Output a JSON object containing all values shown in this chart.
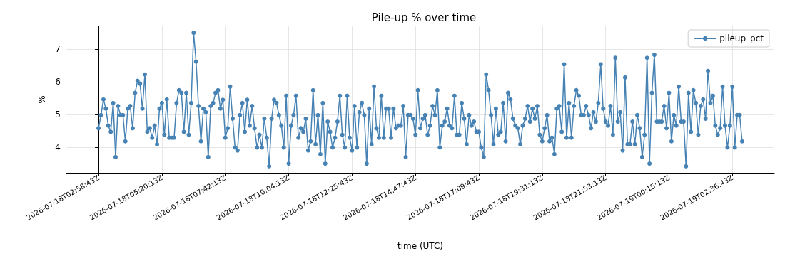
{
  "chart_data": {
    "type": "line",
    "title": "Pile-up % over time",
    "xlabel": "time (UTC)",
    "ylabel": "%",
    "categories": [
      "2026-07-18T02:58:43Z",
      null,
      null,
      null,
      null,
      null,
      null,
      null,
      null,
      null,
      null,
      null,
      null,
      null,
      null,
      null,
      null,
      null,
      null,
      null,
      null,
      null,
      null,
      null,
      null,
      null,
      "2026-07-18T05:20:13Z",
      null,
      null,
      null,
      null,
      null,
      null,
      null,
      null,
      null,
      null,
      null,
      null,
      null,
      null,
      null,
      null,
      null,
      null,
      null,
      null,
      null,
      null,
      null,
      null,
      null,
      "2026-07-18T07:42:13Z",
      null,
      null,
      null,
      null,
      null,
      null,
      null,
      null,
      null,
      null,
      null,
      null,
      null,
      null,
      null,
      null,
      null,
      null,
      null,
      null,
      null,
      null,
      null,
      null,
      null,
      "2026-07-18T10:04:13Z",
      null,
      null,
      null,
      null,
      null,
      null,
      null,
      null,
      null,
      null,
      null,
      null,
      null,
      null,
      null,
      null,
      null,
      null,
      null,
      null,
      null,
      null,
      null,
      null,
      null,
      "2026-07-18T12:25:43Z",
      null,
      null,
      null,
      null,
      null,
      null,
      null,
      null,
      null,
      null,
      null,
      null,
      null,
      null,
      null,
      null,
      null,
      null,
      null,
      null,
      null,
      null,
      null,
      null,
      null,
      "2026-07-18T14:47:43Z",
      null,
      null,
      null,
      null,
      null,
      null,
      null,
      null,
      null,
      null,
      null,
      null,
      null,
      null,
      null,
      null,
      null,
      null,
      null,
      null,
      null,
      null,
      null,
      null,
      null,
      "2026-07-18T17:09:43Z",
      null,
      null,
      null,
      null,
      null,
      null,
      null,
      null,
      null,
      null,
      null,
      null,
      null,
      null,
      null,
      null,
      null,
      null,
      null,
      null,
      null,
      null,
      null,
      null,
      null,
      "2026-07-18T19:31:13Z",
      null,
      null,
      null,
      null,
      null,
      null,
      null,
      null,
      null,
      null,
      null,
      null,
      null,
      null,
      null,
      null,
      null,
      null,
      null,
      null,
      null,
      null,
      null,
      null,
      null,
      "2026-07-18T21:53:13Z",
      null,
      null,
      null,
      null,
      null,
      null,
      null,
      null,
      null,
      null,
      null,
      null,
      null,
      null,
      null,
      null,
      null,
      null,
      null,
      null,
      null,
      null,
      null,
      null,
      null,
      "2026-07-19T00:15:13Z",
      null,
      null,
      null,
      null,
      null,
      null,
      null,
      null,
      null,
      null,
      null,
      null,
      null,
      null,
      null,
      null,
      null,
      null,
      null,
      null,
      null,
      null,
      null,
      null,
      null,
      "2026-07-19T02:36:43Z",
      null,
      null,
      null,
      null
    ],
    "series": [
      {
        "name": "pileup_pct",
        "color": "#4682b4",
        "values": [
          4.58,
          4.98,
          5.46,
          5.18,
          4.66,
          4.47,
          5.35,
          3.7,
          5.26,
          4.98,
          4.98,
          4.18,
          5.18,
          5.26,
          4.58,
          5.66,
          6.03,
          5.94,
          5.18,
          6.22,
          4.47,
          4.58,
          4.29,
          4.66,
          4.09,
          5.18,
          5.35,
          4.38,
          5.46,
          4.29,
          4.29,
          4.29,
          5.35,
          5.74,
          5.66,
          4.47,
          5.66,
          4.38,
          5.35,
          7.49,
          6.61,
          5.26,
          4.18,
          5.18,
          5.07,
          3.7,
          5.26,
          5.35,
          5.66,
          5.74,
          5.18,
          5.45,
          4.29,
          4.58,
          5.85,
          4.87,
          3.99,
          3.9,
          4.98,
          5.35,
          4.47,
          5.45,
          4.66,
          5.26,
          4.58,
          3.99,
          4.38,
          3.99,
          4.87,
          4.29,
          3.42,
          4.87,
          5.45,
          5.35,
          4.98,
          4.66,
          3.99,
          5.57,
          3.5,
          4.66,
          4.98,
          5.57,
          4.29,
          4.58,
          4.47,
          4.87,
          3.9,
          4.18,
          5.74,
          4.09,
          4.98,
          3.79,
          5.35,
          3.5,
          4.78,
          4.47,
          3.99,
          4.29,
          4.78,
          5.57,
          4.38,
          3.99,
          5.57,
          4.29,
          3.9,
          5.26,
          3.99,
          5.07,
          5.35,
          4.98,
          3.5,
          5.18,
          4.09,
          5.85,
          4.58,
          4.29,
          5.57,
          4.29,
          5.18,
          5.18,
          4.29,
          5.18,
          4.58,
          4.66,
          4.66,
          5.26,
          3.7,
          4.98,
          4.98,
          4.87,
          4.38,
          5.74,
          4.58,
          4.87,
          4.98,
          4.38,
          4.66,
          5.26,
          4.98,
          5.74,
          3.99,
          4.66,
          4.78,
          5.18,
          4.66,
          4.58,
          5.57,
          4.38,
          4.38,
          5.35,
          4.87,
          4.09,
          4.98,
          4.66,
          4.78,
          4.47,
          4.47,
          3.99,
          3.7,
          6.22,
          5.74,
          4.98,
          4.09,
          5.18,
          4.38,
          4.47,
          5.35,
          4.18,
          5.66,
          5.46,
          4.87,
          4.66,
          4.58,
          4.09,
          4.66,
          4.87,
          5.26,
          4.78,
          5.18,
          4.87,
          5.26,
          4.38,
          4.18,
          4.58,
          4.98,
          4.18,
          4.29,
          3.79,
          5.18,
          5.26,
          4.47,
          6.53,
          4.29,
          5.35,
          4.29,
          5.26,
          5.74,
          5.57,
          4.98,
          4.98,
          5.26,
          4.98,
          4.58,
          5.07,
          4.78,
          5.35,
          6.53,
          5.18,
          4.78,
          4.66,
          5.26,
          4.38,
          6.73,
          4.78,
          5.07,
          3.9,
          6.13,
          4.09,
          4.09,
          4.78,
          4.09,
          4.98,
          4.58,
          3.7,
          4.38,
          6.73,
          3.5,
          5.66,
          6.82,
          4.78,
          4.78,
          4.78,
          5.26,
          4.58,
          5.66,
          4.18,
          4.98,
          4.66,
          5.85,
          4.78,
          4.78,
          3.42,
          5.66,
          4.47,
          5.74,
          5.35,
          4.38,
          5.26,
          5.46,
          4.87,
          6.33,
          5.35,
          5.57,
          4.66,
          4.38,
          4.58,
          5.85,
          4.66,
          3.99,
          4.66,
          5.85,
          3.99,
          4.98,
          4.98,
          4.18
        ]
      }
    ],
    "ylim": [
      3.22,
      7.69
    ],
    "yticks": [
      4,
      5,
      6,
      7
    ],
    "grid": true,
    "legend": "top right",
    "marker": "circle",
    "line_style": "solid"
  }
}
